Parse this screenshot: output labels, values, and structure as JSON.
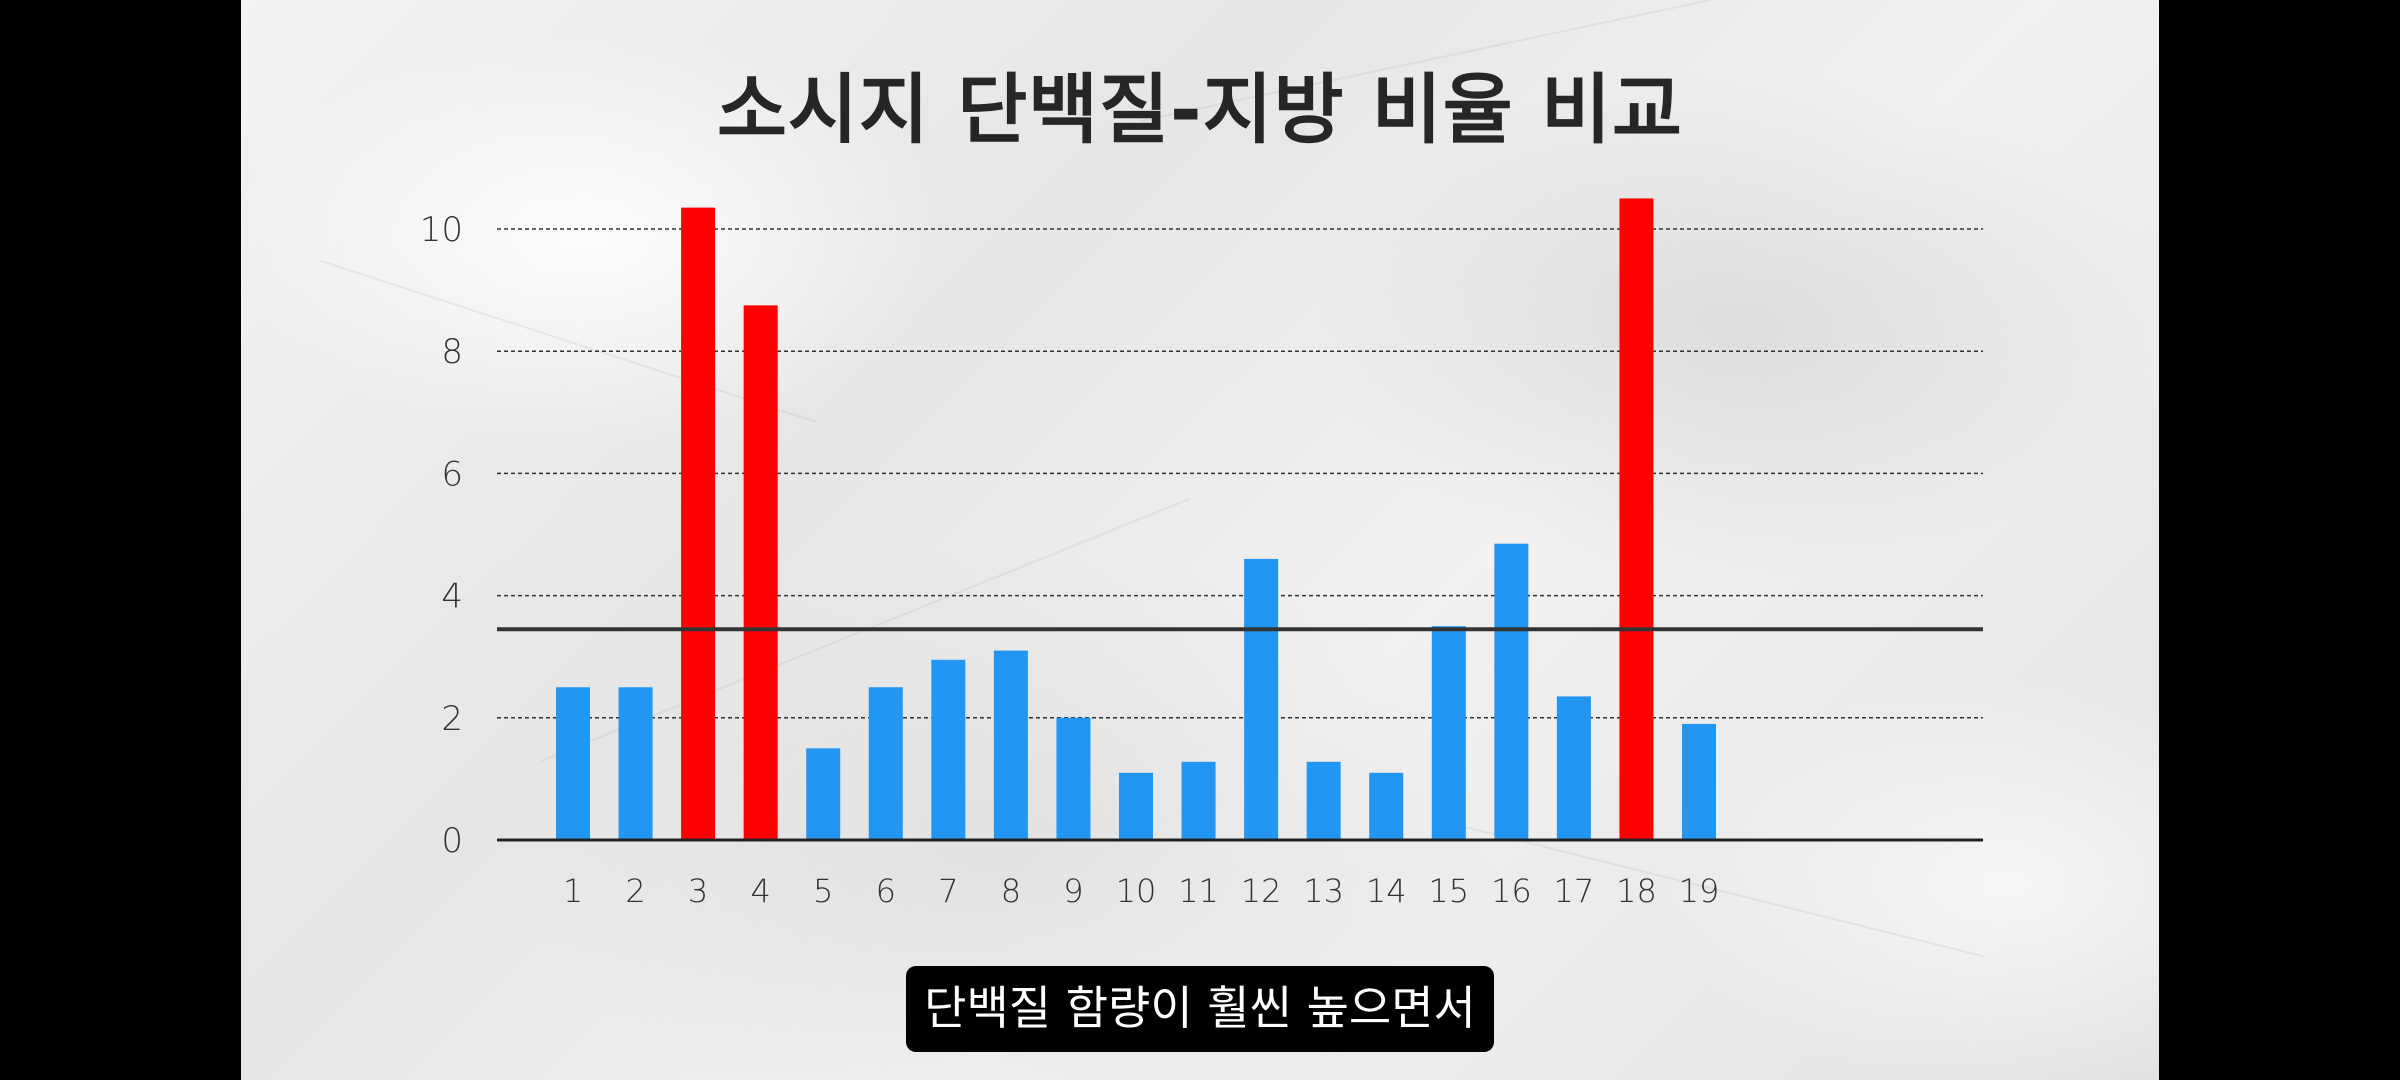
{
  "title": "소시지 단백질-지방 비율 비교",
  "caption": "단백질 함량이 훨씬 높으면서",
  "colors": {
    "normal": "#2196F3",
    "highlight": "#FF0000",
    "axis": "#222222",
    "grid": "#333333",
    "reference_line": "#333333",
    "tick_text": "#333333"
  },
  "chart_data": {
    "type": "bar",
    "title": "소시지 단백질-지방 비율 비교",
    "xlabel": "",
    "ylabel": "",
    "categories": [
      "1",
      "2",
      "3",
      "4",
      "5",
      "6",
      "7",
      "8",
      "9",
      "10",
      "11",
      "12",
      "13",
      "14",
      "15",
      "16",
      "17",
      "18",
      "19"
    ],
    "values": [
      2.5,
      2.5,
      10.35,
      8.75,
      1.5,
      2.5,
      2.95,
      3.1,
      2.0,
      1.1,
      1.28,
      4.6,
      1.28,
      1.1,
      3.5,
      4.85,
      2.35,
      10.5,
      1.9
    ],
    "highlighted": [
      3,
      4,
      18
    ],
    "y_ticks": [
      0,
      2,
      4,
      6,
      8,
      10
    ],
    "ylim": [
      0,
      10.5
    ],
    "reference_value": 3.45,
    "grid": "dashed horizontal",
    "legend": "none"
  }
}
